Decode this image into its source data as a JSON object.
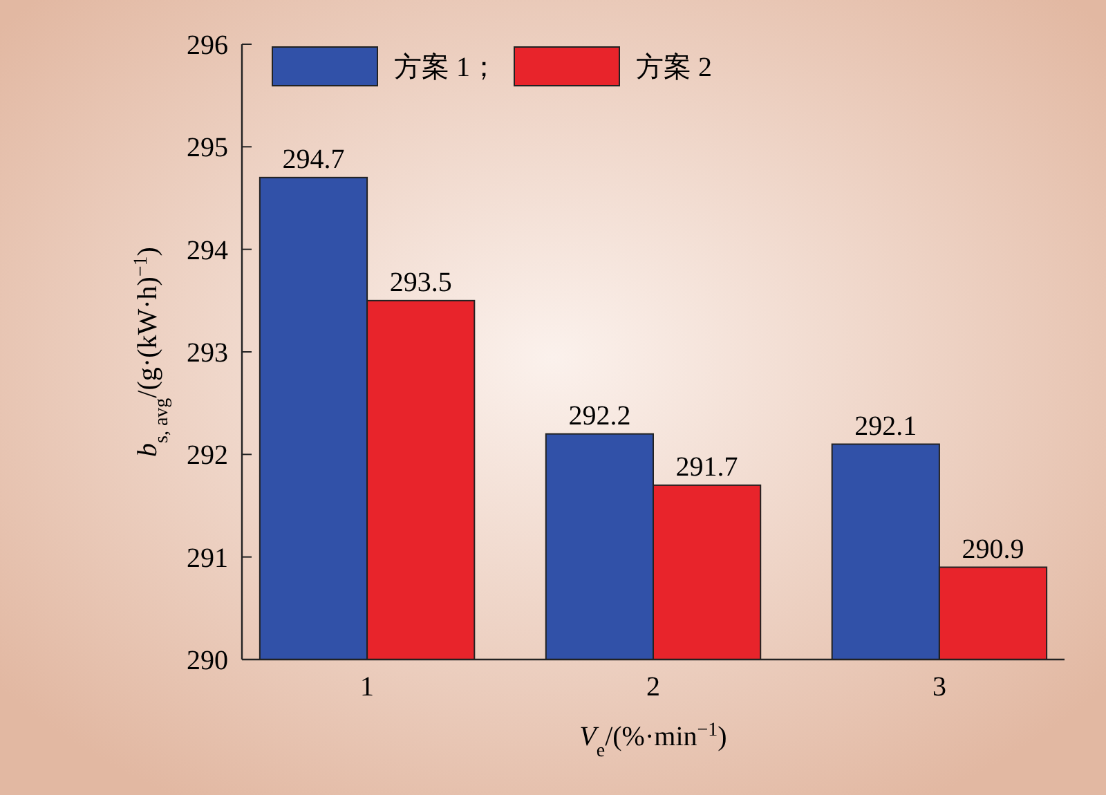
{
  "chart_data": {
    "type": "bar",
    "categories": [
      "1",
      "2",
      "3"
    ],
    "series": [
      {
        "name": "方案 1；",
        "color": "#3151a8",
        "values": [
          294.7,
          292.2,
          292.1
        ]
      },
      {
        "name": "方案 2",
        "color": "#e8242b",
        "values": [
          293.5,
          291.7,
          290.9
        ]
      }
    ],
    "ylim": [
      290,
      296
    ],
    "yticks": [
      290,
      291,
      292,
      293,
      294,
      295,
      296
    ],
    "xlabel": "V$_{e}$/(%·min$^{−1}$)",
    "ylabel": "b$_{s, avg}$/(g·(kW·h)$^{−1}$)",
    "data_labels": true,
    "legend": "top left",
    "grid": false
  }
}
